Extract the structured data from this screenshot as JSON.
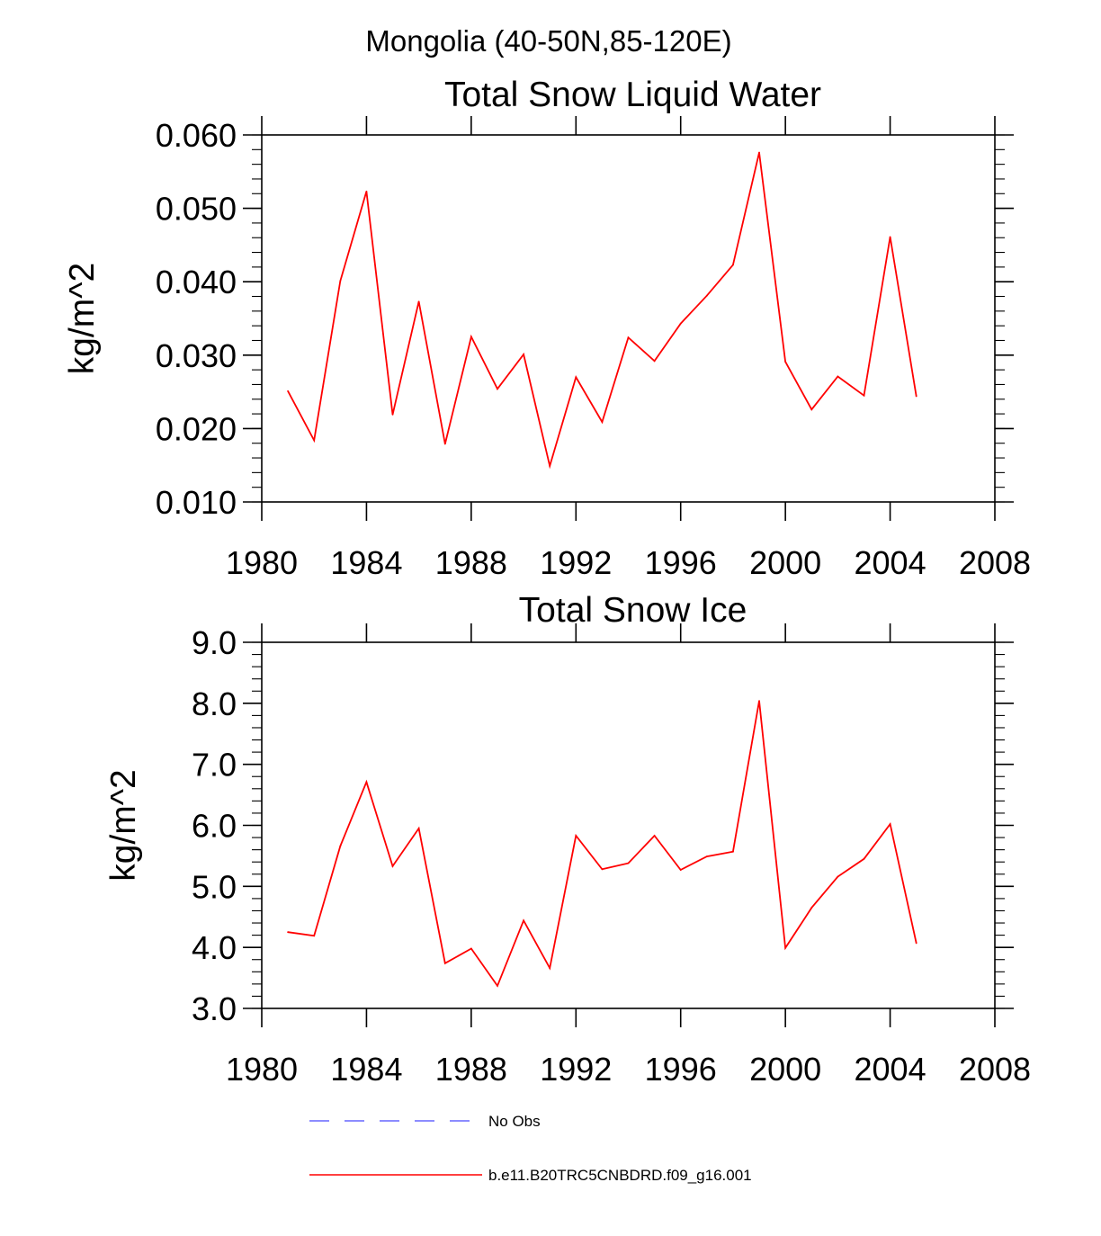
{
  "figure": {
    "title": "Mongolia (40-50N,85-120E)"
  },
  "legend": {
    "entries": [
      {
        "label": "No Obs",
        "color": "#6666ff",
        "style": "dashed"
      },
      {
        "label": "b.e11.B20TRC5CNBDRD.f09_g16.001",
        "color": "#ff0000",
        "style": "solid"
      }
    ]
  },
  "chart_data": [
    {
      "type": "line",
      "title": "Total Snow Liquid Water",
      "xlabel": "",
      "ylabel": "kg/m^2",
      "xlim": [
        1980,
        2008
      ],
      "ylim": [
        0.01,
        0.06
      ],
      "xticks": [
        1980,
        1984,
        1988,
        1992,
        1996,
        2000,
        2004,
        2008
      ],
      "xtick_labels": [
        "1980",
        "1984",
        "1988",
        "1992",
        "1996",
        "2000",
        "2004",
        "2008"
      ],
      "yticks": [
        0.01,
        0.02,
        0.03,
        0.04,
        0.05,
        0.06
      ],
      "ytick_labels": [
        "0.010",
        "0.020",
        "0.030",
        "0.040",
        "0.050",
        "0.060"
      ],
      "grid": false,
      "series": [
        {
          "name": "b.e11.B20TRC5CNBDRD.f09_g16.001",
          "color": "#ff0000",
          "x": [
            1981,
            1982,
            1983,
            1984,
            1985,
            1986,
            1987,
            1988,
            1989,
            1990,
            1991,
            1992,
            1993,
            1994,
            1995,
            1996,
            1997,
            1998,
            1999,
            2000,
            2001,
            2002,
            2003,
            2004,
            2005
          ],
          "values": [
            0.0251,
            0.0184,
            0.0401,
            0.0523,
            0.0219,
            0.0373,
            0.0179,
            0.0325,
            0.0254,
            0.0301,
            0.0149,
            0.027,
            0.0209,
            0.0324,
            0.0292,
            0.0343,
            0.0381,
            0.0423,
            0.0576,
            0.0291,
            0.0226,
            0.0271,
            0.0245,
            0.0461,
            0.0244
          ]
        }
      ]
    },
    {
      "type": "line",
      "title": "Total Snow Ice",
      "xlabel": "",
      "ylabel": "kg/m^2",
      "xlim": [
        1980,
        2008
      ],
      "ylim": [
        3.0,
        9.0
      ],
      "xticks": [
        1980,
        1984,
        1988,
        1992,
        1996,
        2000,
        2004,
        2008
      ],
      "xtick_labels": [
        "1980",
        "1984",
        "1988",
        "1992",
        "1996",
        "2000",
        "2004",
        "2008"
      ],
      "yticks": [
        3.0,
        4.0,
        5.0,
        6.0,
        7.0,
        8.0,
        9.0
      ],
      "ytick_labels": [
        "3.0",
        "4.0",
        "5.0",
        "6.0",
        "7.0",
        "8.0",
        "9.0"
      ],
      "grid": false,
      "series": [
        {
          "name": "b.e11.B20TRC5CNBDRD.f09_g16.001",
          "color": "#ff0000",
          "x": [
            1981,
            1982,
            1983,
            1984,
            1985,
            1986,
            1987,
            1988,
            1989,
            1990,
            1991,
            1992,
            1993,
            1994,
            1995,
            1996,
            1997,
            1998,
            1999,
            2000,
            2001,
            2002,
            2003,
            2004,
            2005
          ],
          "values": [
            4.25,
            4.19,
            5.66,
            6.71,
            5.33,
            5.95,
            3.74,
            3.98,
            3.37,
            4.44,
            3.66,
            5.83,
            5.28,
            5.38,
            5.83,
            5.27,
            5.49,
            5.57,
            8.04,
            3.99,
            4.65,
            5.16,
            5.45,
            6.02,
            4.07
          ]
        }
      ]
    }
  ]
}
